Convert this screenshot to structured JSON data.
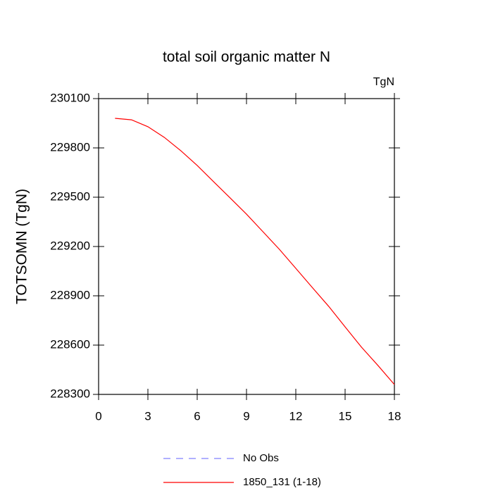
{
  "chart_data": {
    "type": "line",
    "title": "total soil organic matter N",
    "units": "TgN",
    "y_label": "TOTSOMN  (TgN)",
    "x": [
      1,
      2,
      3,
      4,
      5,
      6,
      7,
      8,
      9,
      10,
      11,
      12,
      13,
      14,
      15,
      16,
      17,
      18
    ],
    "series": [
      {
        "name": "No Obs",
        "color": "#8080ff",
        "dash": true,
        "values": [
          null,
          null,
          null,
          null,
          null,
          null,
          null,
          null,
          null,
          null,
          null,
          null,
          null,
          null,
          null,
          null,
          null,
          null
        ]
      },
      {
        "name": "1850_131 (1-18)",
        "color": "#ff0000",
        "dash": false,
        "values": [
          229980,
          229971,
          229929,
          229864,
          229783,
          229693,
          229594,
          229496,
          229397,
          229290,
          229183,
          229067,
          228951,
          228836,
          228711,
          228587,
          228476,
          228360
        ]
      }
    ],
    "xlim": [
      0,
      18
    ],
    "xticks": [
      0,
      3,
      6,
      9,
      12,
      15,
      18
    ],
    "ylim": [
      228300,
      230100
    ],
    "yticks": [
      228300,
      228600,
      228900,
      229200,
      229500,
      229800,
      230100
    ],
    "grid": false
  }
}
